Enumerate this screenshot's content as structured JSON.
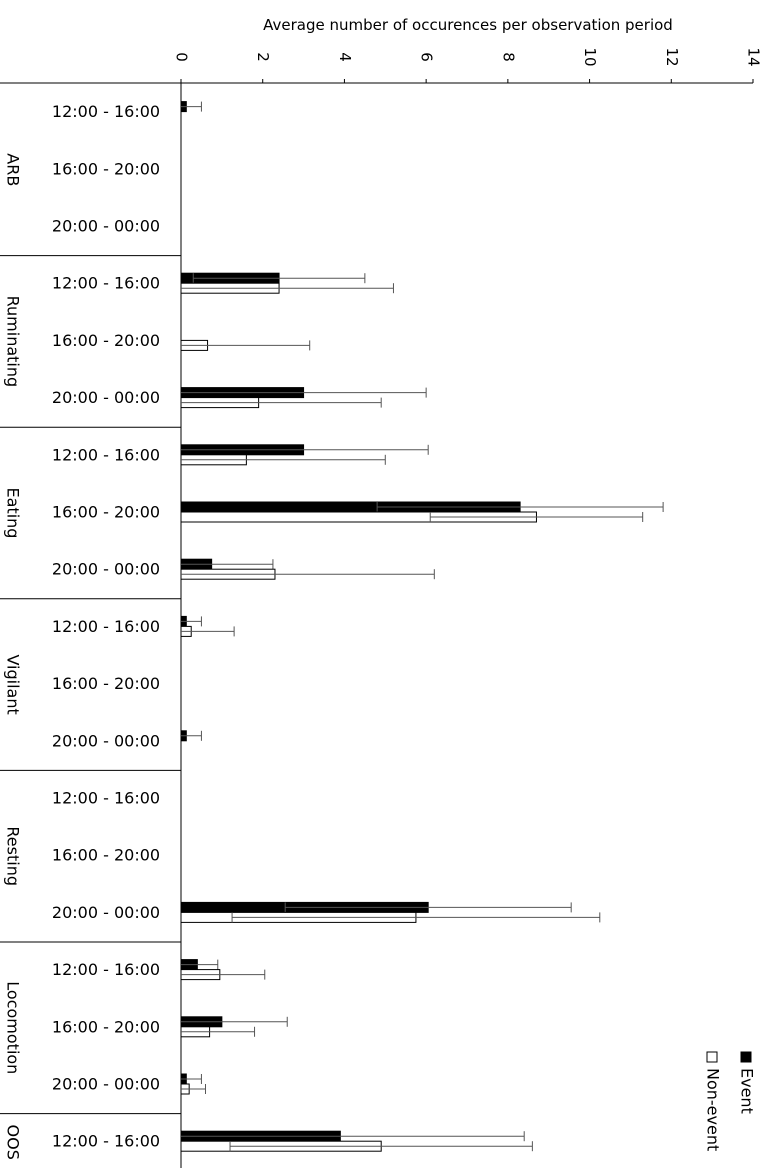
{
  "chart_data": {
    "type": "bar",
    "orientation": "horizontal",
    "xlabel": "Average number of occurences per observation period",
    "ylabel": "",
    "xlim": [
      0,
      14
    ],
    "xticks": [
      "0",
      "2",
      "4",
      "6",
      "8",
      "10",
      "12",
      "14"
    ],
    "grid": false,
    "legend_placement": "bottom-right",
    "groups": [
      {
        "label": "ARB",
        "periods": [
          "12:00 - 16:00",
          "16:00 - 20:00",
          "20:00 - 00:00"
        ]
      },
      {
        "label": "Ruminating",
        "periods": [
          "12:00 - 16:00",
          "16:00 - 20:00",
          "20:00 - 00:00"
        ]
      },
      {
        "label": "Eating",
        "periods": [
          "12:00 - 16:00",
          "16:00 - 20:00",
          "20:00 - 00:00"
        ]
      },
      {
        "label": "Vigilant",
        "periods": [
          "12:00 - 16:00",
          "16:00 - 20:00",
          "20:00 - 00:00"
        ]
      },
      {
        "label": "Resting",
        "periods": [
          "12:00 - 16:00",
          "16:00 - 20:00",
          "20:00 - 00:00"
        ]
      },
      {
        "label": "Locomotion",
        "periods": [
          "12:00 - 16:00",
          "16:00 - 20:00",
          "20:00 - 00:00"
        ]
      },
      {
        "label": "OOS",
        "periods": [
          "12:00 - 16:00"
        ]
      }
    ],
    "series": [
      {
        "name": "Event",
        "color": "#000000",
        "values": [
          0.13,
          0,
          0,
          2.4,
          0,
          3.0,
          3.0,
          8.3,
          0.75,
          0.13,
          0,
          0.13,
          0,
          0,
          6.05,
          0.4,
          1.0,
          0.13,
          3.9
        ],
        "error": [
          0.37,
          0,
          0,
          2.1,
          0,
          3.0,
          3.05,
          3.5,
          1.5,
          0.37,
          0,
          0.37,
          0,
          0,
          3.5,
          0.5,
          1.6,
          0.37,
          4.5
        ]
      },
      {
        "name": "Non-event",
        "color": "#ffffff",
        "values": [
          0,
          0,
          0,
          2.4,
          0.65,
          1.9,
          1.6,
          8.7,
          2.3,
          0.25,
          0,
          0,
          0,
          0,
          5.75,
          0.95,
          0.7,
          0.2,
          4.9
        ],
        "error": [
          0,
          0,
          0,
          2.8,
          2.5,
          3.0,
          3.4,
          2.6,
          3.9,
          1.05,
          0,
          0,
          0,
          0,
          4.5,
          1.1,
          1.1,
          0.4,
          3.7
        ]
      }
    ]
  }
}
